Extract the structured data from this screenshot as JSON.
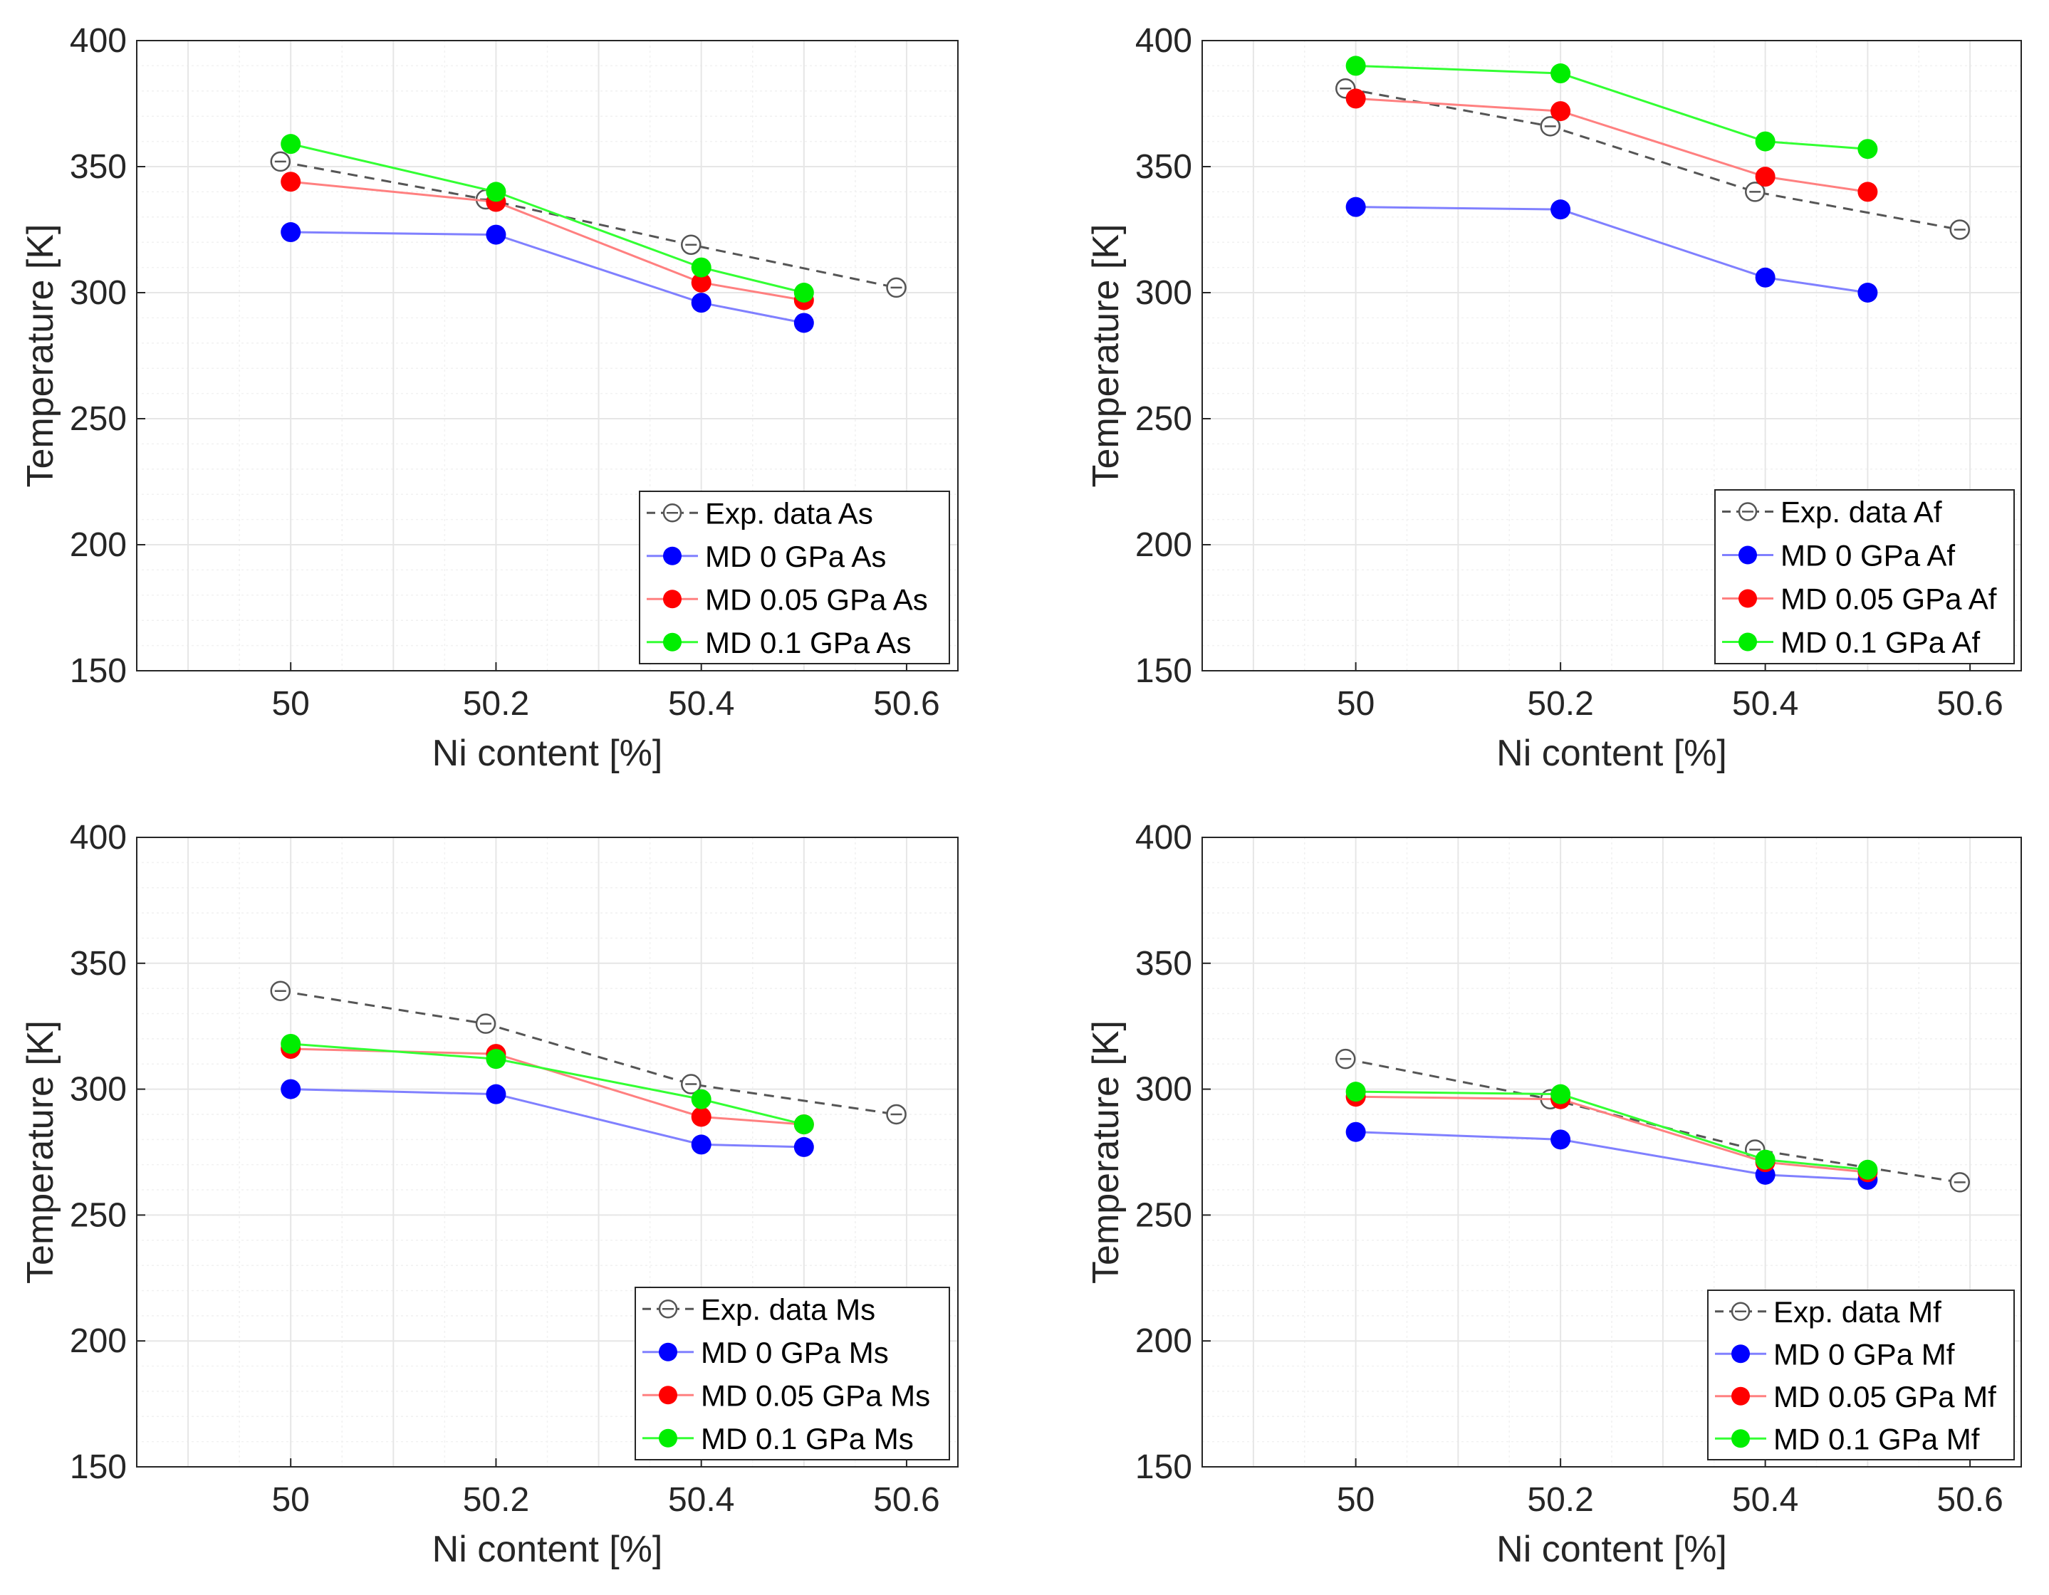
{
  "figure": {
    "colors": {
      "exp": "#555555",
      "md0": "#0000ff",
      "md005": "#ff0000",
      "md01": "#00ee00",
      "md0_line": "#8080ff",
      "md005_line": "#ff8080",
      "md01_line": "#33ff33",
      "grid": "#e6e6e6",
      "minor_grid": "#f1f1f1",
      "axis": "#262626"
    }
  },
  "chart_data": [
    {
      "type": "line",
      "title": "",
      "xlabel": "Ni content [%]",
      "ylabel": "Temperature [K]",
      "xlim": [
        49.85,
        50.65
      ],
      "ylim": [
        150,
        400
      ],
      "xticks": [
        50,
        50.2,
        50.4,
        50.6
      ],
      "xtick_labels": [
        "50",
        "50.2",
        "50.4",
        "50.6"
      ],
      "yticks": [
        150,
        200,
        250,
        300,
        350,
        400
      ],
      "ytick_labels": [
        "150",
        "200",
        "250",
        "300",
        "350",
        "400"
      ],
      "grid": true,
      "legend_position": "bottom-right",
      "series": [
        {
          "name": "Exp. data As",
          "style": "exp",
          "x": [
            49.99,
            50.19,
            50.39,
            50.59
          ],
          "values": [
            352,
            337,
            319,
            302
          ]
        },
        {
          "name": "MD 0 GPa As",
          "style": "md0",
          "x": [
            50,
            50.2,
            50.4,
            50.5
          ],
          "values": [
            324,
            323,
            296,
            288
          ]
        },
        {
          "name": "MD 0.05 GPa As",
          "style": "md005",
          "x": [
            50,
            50.2,
            50.4,
            50.5
          ],
          "values": [
            344,
            336,
            304,
            297
          ]
        },
        {
          "name": "MD 0.1 GPa As",
          "style": "md01",
          "x": [
            50,
            50.2,
            50.4,
            50.5
          ],
          "values": [
            359,
            340,
            310,
            300
          ]
        }
      ]
    },
    {
      "type": "line",
      "title": "",
      "xlabel": "Ni content [%]",
      "ylabel": "Temperature [K]",
      "xlim": [
        49.85,
        50.65
      ],
      "ylim": [
        150,
        400
      ],
      "xticks": [
        50,
        50.2,
        50.4,
        50.6
      ],
      "xtick_labels": [
        "50",
        "50.2",
        "50.4",
        "50.6"
      ],
      "yticks": [
        150,
        200,
        250,
        300,
        350,
        400
      ],
      "ytick_labels": [
        "150",
        "200",
        "250",
        "300",
        "350",
        "400"
      ],
      "grid": true,
      "legend_position": "bottom-right",
      "series": [
        {
          "name": "Exp. data Af",
          "style": "exp",
          "x": [
            49.99,
            50.19,
            50.39,
            50.59
          ],
          "values": [
            381,
            366,
            340,
            325
          ]
        },
        {
          "name": "MD 0 GPa Af",
          "style": "md0",
          "x": [
            50,
            50.2,
            50.4,
            50.5
          ],
          "values": [
            334,
            333,
            306,
            300
          ]
        },
        {
          "name": "MD 0.05 GPa Af",
          "style": "md005",
          "x": [
            50,
            50.2,
            50.4,
            50.5
          ],
          "values": [
            377,
            372,
            346,
            340
          ]
        },
        {
          "name": "MD 0.1 GPa Af",
          "style": "md01",
          "x": [
            50,
            50.2,
            50.4,
            50.5
          ],
          "values": [
            390,
            387,
            360,
            357
          ]
        }
      ]
    },
    {
      "type": "line",
      "title": "",
      "xlabel": "Ni content [%]",
      "ylabel": "Temperature [K]",
      "xlim": [
        49.85,
        50.65
      ],
      "ylim": [
        150,
        400
      ],
      "xticks": [
        50,
        50.2,
        50.4,
        50.6
      ],
      "xtick_labels": [
        "50",
        "50.2",
        "50.4",
        "50.6"
      ],
      "yticks": [
        150,
        200,
        250,
        300,
        350,
        400
      ],
      "ytick_labels": [
        "150",
        "200",
        "250",
        "300",
        "350",
        "400"
      ],
      "grid": true,
      "legend_position": "bottom-right",
      "series": [
        {
          "name": "Exp. data Ms",
          "style": "exp",
          "x": [
            49.99,
            50.19,
            50.39,
            50.59
          ],
          "values": [
            339,
            326,
            302,
            290
          ]
        },
        {
          "name": "MD 0 GPa Ms",
          "style": "md0",
          "x": [
            50,
            50.2,
            50.4,
            50.5
          ],
          "values": [
            300,
            298,
            278,
            277
          ]
        },
        {
          "name": "MD 0.05 GPa Ms",
          "style": "md005",
          "x": [
            50,
            50.2,
            50.4,
            50.5
          ],
          "values": [
            316,
            314,
            289,
            286
          ]
        },
        {
          "name": "MD 0.1 GPa Ms",
          "style": "md01",
          "x": [
            50,
            50.2,
            50.4,
            50.5
          ],
          "values": [
            318,
            312,
            296,
            286
          ]
        }
      ]
    },
    {
      "type": "line",
      "title": "",
      "xlabel": "Ni content [%]",
      "ylabel": "Temperature [K]",
      "xlim": [
        49.85,
        50.65
      ],
      "ylim": [
        150,
        400
      ],
      "xticks": [
        50,
        50.2,
        50.4,
        50.6
      ],
      "xtick_labels": [
        "50",
        "50.2",
        "50.4",
        "50.6"
      ],
      "yticks": [
        150,
        200,
        250,
        300,
        350,
        400
      ],
      "ytick_labels": [
        "150",
        "200",
        "250",
        "300",
        "350",
        "400"
      ],
      "grid": true,
      "legend_position": "bottom-right",
      "series": [
        {
          "name": "Exp. data Mf",
          "style": "exp",
          "x": [
            49.99,
            50.19,
            50.39,
            50.59
          ],
          "values": [
            312,
            296,
            276,
            263
          ]
        },
        {
          "name": "MD 0 GPa Mf",
          "style": "md0",
          "x": [
            50,
            50.2,
            50.4,
            50.5
          ],
          "values": [
            283,
            280,
            266,
            264
          ]
        },
        {
          "name": "MD 0.05 GPa Mf",
          "style": "md005",
          "x": [
            50,
            50.2,
            50.4,
            50.5
          ],
          "values": [
            297,
            296,
            271,
            267
          ]
        },
        {
          "name": "MD 0.1 GPa Mf",
          "style": "md01",
          "x": [
            50,
            50.2,
            50.4,
            50.5
          ],
          "values": [
            299,
            298,
            272,
            268
          ]
        }
      ]
    }
  ]
}
